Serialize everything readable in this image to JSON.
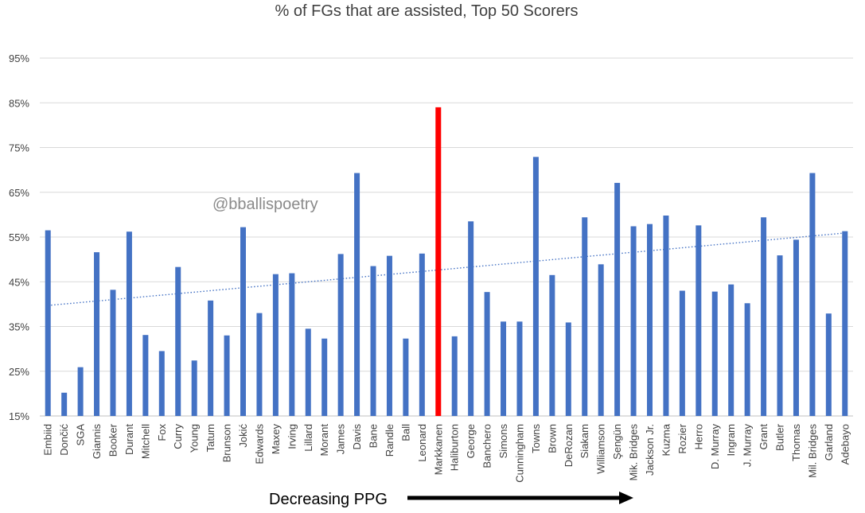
{
  "chart_data": {
    "type": "bar",
    "title": "% of FGs that are assisted, Top 50 Scorers",
    "xlabel": "Decreasing PPG",
    "ylabel": "",
    "ylim": [
      15,
      95
    ],
    "y_ticks": [
      "15%",
      "25%",
      "35%",
      "45%",
      "55%",
      "65%",
      "75%",
      "85%",
      "95%"
    ],
    "y_tick_values": [
      15,
      25,
      35,
      45,
      55,
      65,
      75,
      85,
      95
    ],
    "watermark": "@bballispoetry",
    "highlight": "Markkanen",
    "colors": {
      "bar": "#4472C4",
      "highlight": "#FF0000",
      "trendline": "#4472C4",
      "grid": "#D9D9D9"
    },
    "trendline": {
      "type": "linear",
      "style": "dotted",
      "start": 39.7,
      "end": 55.9
    },
    "categories": [
      "Embiid",
      "Dončić",
      "SGA",
      "Giannis",
      "Booker",
      "Durant",
      "Mitchell",
      "Fox",
      "Curry",
      "Young",
      "Tatum",
      "Brunson",
      "Jokić",
      "Edwards",
      "Maxey",
      "Irving",
      "Lillard",
      "Morant",
      "James",
      "Davis",
      "Bane",
      "Randle",
      "Ball",
      "Leonard",
      "Markkanen",
      "Haliburton",
      "George",
      "Banchero",
      "Simons",
      "Cunningham",
      "Towns",
      "Brown",
      "DeRozan",
      "Siakam",
      "Williamson",
      "Şengün",
      "Mik. Bridges",
      "Jackson Jr.",
      "Kuzma",
      "Rozier",
      "Herro",
      "D. Murray",
      "Ingram",
      "J. Murray",
      "Grant",
      "Butler",
      "Thomas",
      "Mil. Bridges",
      "Garland",
      "Adebayo"
    ],
    "values": [
      56.5,
      20.2,
      25.9,
      51.6,
      43.2,
      56.2,
      33.1,
      29.5,
      48.3,
      27.4,
      40.8,
      33.0,
      57.2,
      38.0,
      46.7,
      46.9,
      34.5,
      32.3,
      51.2,
      69.3,
      48.5,
      50.8,
      32.3,
      51.3,
      84.0,
      32.8,
      58.5,
      42.7,
      36.1,
      36.1,
      72.9,
      46.5,
      35.9,
      59.4,
      48.9,
      67.1,
      57.4,
      57.9,
      59.8,
      43.0,
      57.6,
      42.8,
      44.4,
      40.2,
      59.4,
      50.9,
      54.4,
      69.3,
      37.9,
      56.3
    ]
  }
}
